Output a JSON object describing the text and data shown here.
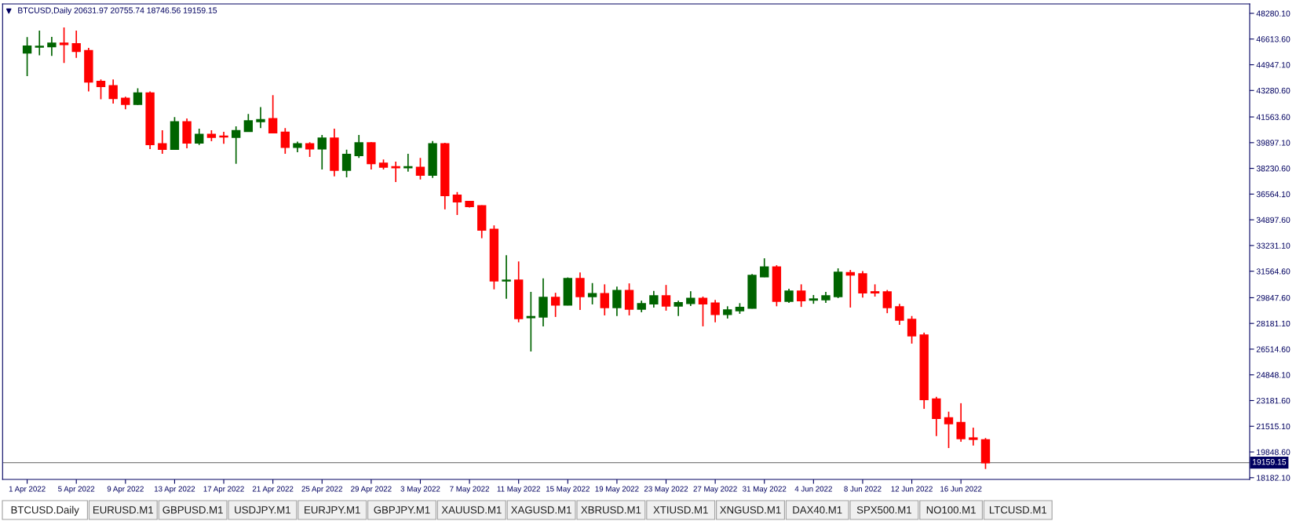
{
  "chart_data": {
    "type": "candlestick",
    "title": "BTCUSD,Daily 20631.97 20755.74 18746.56 19159.15",
    "x": [
      "2022-04-01",
      "2022-04-02",
      "2022-04-03",
      "2022-04-04",
      "2022-04-05",
      "2022-04-06",
      "2022-04-07",
      "2022-04-08",
      "2022-04-09",
      "2022-04-10",
      "2022-04-11",
      "2022-04-12",
      "2022-04-13",
      "2022-04-14",
      "2022-04-15",
      "2022-04-16",
      "2022-04-17",
      "2022-04-18",
      "2022-04-19",
      "2022-04-20",
      "2022-04-21",
      "2022-04-22",
      "2022-04-23",
      "2022-04-24",
      "2022-04-25",
      "2022-04-26",
      "2022-04-27",
      "2022-04-28",
      "2022-04-29",
      "2022-04-30",
      "2022-05-01",
      "2022-05-02",
      "2022-05-03",
      "2022-05-04",
      "2022-05-05",
      "2022-05-06",
      "2022-05-07",
      "2022-05-08",
      "2022-05-09",
      "2022-05-10",
      "2022-05-11",
      "2022-05-12",
      "2022-05-13",
      "2022-05-14",
      "2022-05-15",
      "2022-05-16",
      "2022-05-17",
      "2022-05-18",
      "2022-05-19",
      "2022-05-20",
      "2022-05-21",
      "2022-05-22",
      "2022-05-23",
      "2022-05-24",
      "2022-05-25",
      "2022-05-26",
      "2022-05-27",
      "2022-05-28",
      "2022-05-29",
      "2022-05-30",
      "2022-05-31",
      "2022-06-01",
      "2022-06-02",
      "2022-06-03",
      "2022-06-04",
      "2022-06-05",
      "2022-06-06",
      "2022-06-07",
      "2022-06-08",
      "2022-06-09",
      "2022-06-10",
      "2022-06-11",
      "2022-06-12",
      "2022-06-13",
      "2022-06-14",
      "2022-06-15",
      "2022-06-16",
      "2022-06-17",
      "2022-06-18"
    ],
    "ohlc": [
      [
        45719,
        46735,
        44214,
        46146
      ],
      [
        46100,
        47162,
        45556,
        46140
      ],
      [
        46125,
        46756,
        45515,
        46349
      ],
      [
        46349,
        47365,
        45068,
        46268
      ],
      [
        46308,
        47162,
        45393,
        45820
      ],
      [
        45861,
        46044,
        43218,
        43828
      ],
      [
        43869,
        43990,
        42710,
        43543
      ],
      [
        43584,
        43990,
        42425,
        42771
      ],
      [
        42771,
        42872,
        42059,
        42384
      ],
      [
        42384,
        43421,
        42340,
        43116
      ],
      [
        43116,
        43218,
        39477,
        39782
      ],
      [
        39823,
        40697,
        39172,
        39477
      ],
      [
        39477,
        41551,
        39437,
        41246
      ],
      [
        41246,
        41470,
        39538,
        39884
      ],
      [
        39884,
        40799,
        39742,
        40433
      ],
      [
        40433,
        40697,
        39986,
        40250
      ],
      [
        40311,
        40595,
        39823,
        40270
      ],
      [
        40250,
        40961,
        38522,
        40677
      ],
      [
        40636,
        41754,
        40595,
        41307
      ],
      [
        41266,
        42201,
        40839,
        41388
      ],
      [
        41449,
        42974,
        40494,
        40535
      ],
      [
        40575,
        40839,
        39172,
        39599
      ],
      [
        39599,
        39965,
        39274,
        39823
      ],
      [
        39823,
        39925,
        38969,
        39498
      ],
      [
        39498,
        40392,
        38156,
        40189
      ],
      [
        40189,
        40799,
        37709,
        38115
      ],
      [
        38115,
        39437,
        37648,
        39132
      ],
      [
        39071,
        40392,
        38908,
        39884
      ],
      [
        39884,
        39945,
        38156,
        38542
      ],
      [
        38562,
        38806,
        38156,
        38319
      ],
      [
        38339,
        38664,
        37343,
        38278
      ],
      [
        38278,
        39172,
        38014,
        38339
      ],
      [
        38298,
        38908,
        37505,
        37790
      ],
      [
        37790,
        40006,
        37607,
        39823
      ],
      [
        39823,
        39884,
        35574,
        36469
      ],
      [
        36489,
        36692,
        35208,
        36062
      ],
      [
        36082,
        36123,
        35696,
        35757
      ],
      [
        35798,
        35838,
        33703,
        34232
      ],
      [
        34273,
        34537,
        30390,
        30939
      ],
      [
        30939,
        32606,
        29780,
        30980
      ],
      [
        30980,
        32199,
        28255,
        28499
      ],
      [
        28560,
        30227,
        26364,
        28621
      ],
      [
        28601,
        31101,
        27991,
        29861
      ],
      [
        29861,
        30166,
        28601,
        29373
      ],
      [
        29373,
        31162,
        29350,
        31081
      ],
      [
        31081,
        31487,
        29049,
        29922
      ],
      [
        29922,
        30797,
        29414,
        30105
      ],
      [
        30105,
        30715,
        28702,
        29210
      ],
      [
        29210,
        30573,
        28662,
        30308
      ],
      [
        30308,
        30776,
        28702,
        29109
      ],
      [
        29109,
        29658,
        28906,
        29455
      ],
      [
        29455,
        30288,
        29210,
        29963
      ],
      [
        29963,
        30674,
        29007,
        29312
      ],
      [
        29312,
        29658,
        28662,
        29516
      ],
      [
        29475,
        30268,
        29312,
        29800
      ],
      [
        29800,
        29922,
        27991,
        29455
      ],
      [
        29495,
        29699,
        28255,
        28763
      ],
      [
        28763,
        29292,
        28499,
        29048
      ],
      [
        29007,
        29495,
        28804,
        29211
      ],
      [
        29170,
        31386,
        29150,
        31284
      ],
      [
        31203,
        32402,
        31180,
        31833
      ],
      [
        31833,
        31955,
        29292,
        29617
      ],
      [
        29617,
        30430,
        29516,
        30268
      ],
      [
        30268,
        30715,
        29251,
        29658
      ],
      [
        29699,
        30024,
        29455,
        29760
      ],
      [
        29719,
        30227,
        29516,
        29963
      ],
      [
        29922,
        31751,
        29821,
        31487
      ],
      [
        31467,
        31650,
        29211,
        31325
      ],
      [
        31386,
        31569,
        29861,
        30166
      ],
      [
        30227,
        30715,
        29922,
        30166
      ],
      [
        30227,
        30349,
        28845,
        29210
      ],
      [
        29251,
        29455,
        28093,
        28397
      ],
      [
        28438,
        28662,
        26872,
        27380
      ],
      [
        27421,
        27584,
        22644,
        23254
      ],
      [
        23274,
        23417,
        20875,
        22034
      ],
      [
        22054,
        22461,
        20102,
        21689
      ],
      [
        21750,
        23010,
        20509,
        20713
      ],
      [
        20753,
        21424,
        20265,
        20672
      ],
      [
        20631.97,
        20755.74,
        18746.56,
        19159.15
      ]
    ],
    "colors": [
      "#006400",
      "#006400",
      "#006400",
      "#ff0000",
      "#ff0000",
      "#ff0000",
      "#ff0000",
      "#ff0000",
      "#ff0000",
      "#006400",
      "#ff0000",
      "#ff0000",
      "#006400",
      "#ff0000",
      "#006400",
      "#ff0000",
      "#ff0000",
      "#006400",
      "#006400",
      "#006400",
      "#ff0000",
      "#ff0000",
      "#006400",
      "#ff0000",
      "#006400",
      "#ff0000",
      "#006400",
      "#006400",
      "#ff0000",
      "#ff0000",
      "#ff0000",
      "#006400",
      "#ff0000",
      "#006400",
      "#ff0000",
      "#ff0000",
      "#ff0000",
      "#ff0000",
      "#ff0000",
      "#006400",
      "#ff0000",
      "#006400",
      "#006400",
      "#ff0000",
      "#006400",
      "#ff0000",
      "#006400",
      "#ff0000",
      "#006400",
      "#ff0000",
      "#006400",
      "#006400",
      "#ff0000",
      "#006400",
      "#006400",
      "#ff0000",
      "#ff0000",
      "#006400",
      "#006400",
      "#006400",
      "#006400",
      "#ff0000",
      "#006400",
      "#ff0000",
      "#006400",
      "#006400",
      "#006400",
      "#ff0000",
      "#ff0000",
      "#ff0000",
      "#ff0000",
      "#ff0000",
      "#ff0000",
      "#ff0000",
      "#ff0000",
      "#ff0000",
      "#ff0000",
      "#ff0000",
      "#ff0000"
    ],
    "xlim": [
      "2022-03-30T00:00",
      "2022-07-09T12:00"
    ],
    "xticks": [
      {
        "value": "2022-04-01",
        "label": "1 Apr 2022"
      },
      {
        "value": "2022-04-05",
        "label": "5 Apr 2022"
      },
      {
        "value": "2022-04-09",
        "label": "9 Apr 2022"
      },
      {
        "value": "2022-04-13",
        "label": "13 Apr 2022"
      },
      {
        "value": "2022-04-17",
        "label": "17 Apr 2022"
      },
      {
        "value": "2022-04-21",
        "label": "21 Apr 2022"
      },
      {
        "value": "2022-04-25",
        "label": "25 Apr 2022"
      },
      {
        "value": "2022-04-29",
        "label": "29 Apr 2022"
      },
      {
        "value": "2022-05-03",
        "label": "3 May 2022"
      },
      {
        "value": "2022-05-07",
        "label": "7 May 2022"
      },
      {
        "value": "2022-05-11",
        "label": "11 May 2022"
      },
      {
        "value": "2022-05-15",
        "label": "15 May 2022"
      },
      {
        "value": "2022-05-19",
        "label": "19 May 2022"
      },
      {
        "value": "2022-05-23",
        "label": "23 May 2022"
      },
      {
        "value": "2022-05-27",
        "label": "27 May 2022"
      },
      {
        "value": "2022-05-31",
        "label": "31 May 2022"
      },
      {
        "value": "2022-06-04",
        "label": "4 Jun 2022"
      },
      {
        "value": "2022-06-08",
        "label": "8 Jun 2022"
      },
      {
        "value": "2022-06-12",
        "label": "12 Jun 2022"
      },
      {
        "value": "2022-06-16",
        "label": "16 Jun 2022"
      }
    ],
    "ylim": [
      18070,
      48890
    ],
    "yticks": [
      {
        "value": 48280.1,
        "label": "48280.10"
      },
      {
        "value": 46613.6,
        "label": "46613.60"
      },
      {
        "value": 44947.1,
        "label": "44947.10"
      },
      {
        "value": 43280.6,
        "label": "43280.60"
      },
      {
        "value": 41563.6,
        "label": "41563.60"
      },
      {
        "value": 39897.1,
        "label": "39897.10"
      },
      {
        "value": 38230.6,
        "label": "38230.60"
      },
      {
        "value": 36564.1,
        "label": "36564.10"
      },
      {
        "value": 34897.6,
        "label": "34897.60"
      },
      {
        "value": 33231.1,
        "label": "33231.10"
      },
      {
        "value": 31564.6,
        "label": "31564.60"
      },
      {
        "value": 29847.6,
        "label": "29847.60"
      },
      {
        "value": 28181.1,
        "label": "28181.10"
      },
      {
        "value": 26514.6,
        "label": "26514.60"
      },
      {
        "value": 24848.1,
        "label": "24848.10"
      },
      {
        "value": 23181.6,
        "label": "23181.60"
      },
      {
        "value": 21515.1,
        "label": "21515.10"
      },
      {
        "value": 19848.6,
        "label": "19848.60"
      },
      {
        "value": 18182.1,
        "label": "18182.10"
      }
    ],
    "ref_lines": [
      {
        "axis": "y",
        "value": 19159.15,
        "label": "19159.15",
        "color": "#808080"
      }
    ],
    "annotations": [
      "BTCUSD.Daily",
      "EURUSD.M1",
      "GBPUSD.M1",
      "USDJPY.M1",
      "EURJPY.M1",
      "GBPJPY.M1",
      "XAUUSD.M1",
      "XAGUSD.M1",
      "XBRUSD.M1",
      "XTIUSD.M1",
      "XNGUSD.M1",
      "DAX40.M1",
      "SPX500.M1",
      "NO100.M1",
      "LTCUSD.M1"
    ],
    "grid": false,
    "legend": false
  }
}
